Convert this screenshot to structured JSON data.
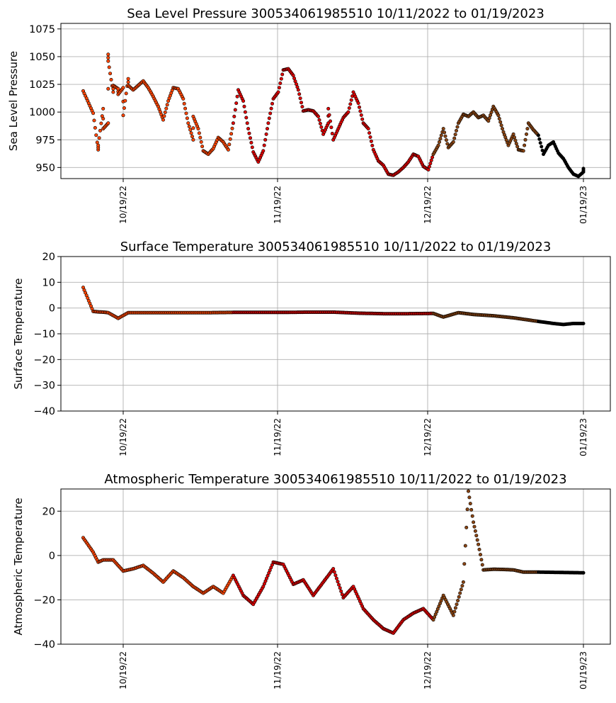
{
  "figure": {
    "x_tick_labels": [
      "10/19/22",
      "11/19/22",
      "12/19/22",
      "01/19/23"
    ]
  },
  "color_scale": [
    "#FF4500",
    "#E00000",
    "#8B4513",
    "#000000"
  ],
  "chart_data": [
    {
      "type": "scatter",
      "title": "Sea Level Pressure 300534061985510  10/11/2022 to 01/19/2023",
      "ylabel": "Sea Level Pressure",
      "xlabel": "",
      "ylim": [
        940,
        1080
      ],
      "yticks": [
        "950",
        "975",
        "1000",
        "1025",
        "1050",
        "1075"
      ],
      "x_range": [
        "10/11/2022",
        "01/19/2023"
      ],
      "grid": true,
      "points": [
        [
          "2022-10-11",
          1019
        ],
        [
          "2022-10-13",
          999
        ],
        [
          "2022-10-14",
          966
        ],
        [
          "2022-10-14",
          970
        ],
        [
          "2022-10-15",
          1003
        ],
        [
          "2022-10-15",
          985
        ],
        [
          "2022-10-16",
          990
        ],
        [
          "2022-10-16",
          1052
        ],
        [
          "2022-10-16",
          1046
        ],
        [
          "2022-10-17",
          1018
        ],
        [
          "2022-10-17",
          1024
        ],
        [
          "2022-10-18",
          1021
        ],
        [
          "2022-10-18",
          1016
        ],
        [
          "2022-10-19",
          1022
        ],
        [
          "2022-10-19",
          997
        ],
        [
          "2022-10-20",
          1030
        ],
        [
          "2022-10-20",
          1024
        ],
        [
          "2022-10-21",
          1020
        ],
        [
          "2022-10-22",
          1024
        ],
        [
          "2022-10-23",
          1028
        ],
        [
          "2022-10-24",
          1022
        ],
        [
          "2022-10-25",
          1014
        ],
        [
          "2022-10-26",
          1005
        ],
        [
          "2022-10-27",
          993
        ],
        [
          "2022-10-28",
          1010
        ],
        [
          "2022-10-29",
          1022
        ],
        [
          "2022-10-30",
          1021
        ],
        [
          "2022-10-31",
          1012
        ],
        [
          "2022-11-01",
          990
        ],
        [
          "2022-11-02",
          975
        ],
        [
          "2022-11-02",
          996
        ],
        [
          "2022-11-03",
          985
        ],
        [
          "2022-11-04",
          965
        ],
        [
          "2022-11-05",
          962
        ],
        [
          "2022-11-06",
          967
        ],
        [
          "2022-11-07",
          977
        ],
        [
          "2022-11-08",
          973
        ],
        [
          "2022-11-09",
          966
        ],
        [
          "2022-11-10",
          990
        ],
        [
          "2022-11-11",
          1020
        ],
        [
          "2022-11-12",
          1010
        ],
        [
          "2022-11-13",
          985
        ],
        [
          "2022-11-14",
          964
        ],
        [
          "2022-11-15",
          955
        ],
        [
          "2022-11-16",
          965
        ],
        [
          "2022-11-17",
          990
        ],
        [
          "2022-11-18",
          1012
        ],
        [
          "2022-11-19",
          1018
        ],
        [
          "2022-11-20",
          1038
        ],
        [
          "2022-11-21",
          1039
        ],
        [
          "2022-11-22",
          1033
        ],
        [
          "2022-11-23",
          1020
        ],
        [
          "2022-11-24",
          1001
        ],
        [
          "2022-11-25",
          1002
        ],
        [
          "2022-11-26",
          1001
        ],
        [
          "2022-11-27",
          996
        ],
        [
          "2022-11-28",
          980
        ],
        [
          "2022-11-29",
          990
        ],
        [
          "2022-11-29",
          1003
        ],
        [
          "2022-11-30",
          975
        ],
        [
          "2022-12-01",
          985
        ],
        [
          "2022-12-02",
          995
        ],
        [
          "2022-12-03",
          1000
        ],
        [
          "2022-12-04",
          1018
        ],
        [
          "2022-12-05",
          1008
        ],
        [
          "2022-12-06",
          990
        ],
        [
          "2022-12-07",
          985
        ],
        [
          "2022-12-08",
          966
        ],
        [
          "2022-12-09",
          956
        ],
        [
          "2022-12-10",
          952
        ],
        [
          "2022-12-11",
          944
        ],
        [
          "2022-12-12",
          943
        ],
        [
          "2022-12-13",
          946
        ],
        [
          "2022-12-14",
          950
        ],
        [
          "2022-12-15",
          955
        ],
        [
          "2022-12-16",
          962
        ],
        [
          "2022-12-17",
          960
        ],
        [
          "2022-12-18",
          951
        ],
        [
          "2022-12-19",
          948
        ],
        [
          "2022-12-20",
          962
        ],
        [
          "2022-12-21",
          970
        ],
        [
          "2022-12-22",
          985
        ],
        [
          "2022-12-23",
          968
        ],
        [
          "2022-12-24",
          973
        ],
        [
          "2022-12-25",
          990
        ],
        [
          "2022-12-26",
          998
        ],
        [
          "2022-12-27",
          996
        ],
        [
          "2022-12-28",
          1000
        ],
        [
          "2022-12-29",
          995
        ],
        [
          "2022-12-30",
          997
        ],
        [
          "2022-12-31",
          992
        ],
        [
          "2023-01-01",
          1005
        ],
        [
          "2023-01-02",
          997
        ],
        [
          "2023-01-03",
          982
        ],
        [
          "2023-01-04",
          970
        ],
        [
          "2023-01-05",
          980
        ],
        [
          "2023-01-06",
          966
        ],
        [
          "2023-01-07",
          965
        ],
        [
          "2023-01-08",
          990
        ],
        [
          "2023-01-09",
          984
        ],
        [
          "2023-01-10",
          979
        ],
        [
          "2023-01-11",
          962
        ],
        [
          "2023-01-12",
          970
        ],
        [
          "2023-01-13",
          973
        ],
        [
          "2023-01-14",
          963
        ],
        [
          "2023-01-15",
          958
        ],
        [
          "2023-01-16",
          950
        ],
        [
          "2023-01-17",
          944
        ],
        [
          "2023-01-18",
          942
        ],
        [
          "2023-01-19",
          946
        ],
        [
          "2023-01-19",
          949
        ]
      ]
    },
    {
      "type": "scatter",
      "title": "Surface Temperature 300534061985510  10/11/2022 to 01/19/2023",
      "ylabel": "Surface Temperature",
      "xlabel": "",
      "ylim": [
        -40,
        20
      ],
      "yticks": [
        "−40",
        "−30",
        "−20",
        "−10",
        "0",
        "10",
        "20"
      ],
      "x_range": [
        "10/11/2022",
        "01/19/2023"
      ],
      "grid": true,
      "points": [
        [
          "2022-10-11",
          8
        ],
        [
          "2022-10-13",
          -1.3
        ],
        [
          "2022-10-14",
          -1.5
        ],
        [
          "2022-10-15",
          -1.6
        ],
        [
          "2022-10-16",
          -1.8
        ],
        [
          "2022-10-18",
          -4
        ],
        [
          "2022-10-20",
          -1.8
        ],
        [
          "2022-10-25",
          -1.8
        ],
        [
          "2022-10-30",
          -1.8
        ],
        [
          "2022-11-05",
          -1.8
        ],
        [
          "2022-11-10",
          -1.7
        ],
        [
          "2022-11-15",
          -1.7
        ],
        [
          "2022-11-20",
          -1.7
        ],
        [
          "2022-11-25",
          -1.6
        ],
        [
          "2022-11-30",
          -1.6
        ],
        [
          "2022-12-05",
          -2.0
        ],
        [
          "2022-12-10",
          -2.2
        ],
        [
          "2022-12-15",
          -2.2
        ],
        [
          "2022-12-20",
          -2.1
        ],
        [
          "2022-12-22",
          -3.5
        ],
        [
          "2022-12-25",
          -1.8
        ],
        [
          "2022-12-28",
          -2.5
        ],
        [
          "2023-01-01",
          -3.0
        ],
        [
          "2023-01-05",
          -3.8
        ],
        [
          "2023-01-10",
          -5.2
        ],
        [
          "2023-01-13",
          -6.0
        ],
        [
          "2023-01-15",
          -6.4
        ],
        [
          "2023-01-17",
          -6.0
        ],
        [
          "2023-01-19",
          -6.0
        ]
      ]
    },
    {
      "type": "scatter",
      "title": "Atmospheric Temperature 300534061985510  10/11/2022 to 01/19/2023",
      "ylabel": "Atmospheric Temperature",
      "xlabel": "",
      "ylim": [
        -40,
        30
      ],
      "yticks": [
        "−40",
        "−20",
        "0",
        "20"
      ],
      "x_range": [
        "10/11/2022",
        "01/19/2023"
      ],
      "grid": true,
      "points": [
        [
          "2022-10-11",
          8
        ],
        [
          "2022-10-13",
          1.5
        ],
        [
          "2022-10-14",
          -3
        ],
        [
          "2022-10-15",
          -2
        ],
        [
          "2022-10-17",
          -2
        ],
        [
          "2022-10-19",
          -7
        ],
        [
          "2022-10-21",
          -6
        ],
        [
          "2022-10-23",
          -4.5
        ],
        [
          "2022-10-25",
          -8
        ],
        [
          "2022-10-27",
          -12
        ],
        [
          "2022-10-29",
          -7
        ],
        [
          "2022-10-31",
          -10
        ],
        [
          "2022-11-02",
          -14
        ],
        [
          "2022-11-04",
          -17
        ],
        [
          "2022-11-06",
          -14
        ],
        [
          "2022-11-08",
          -17
        ],
        [
          "2022-11-10",
          -9
        ],
        [
          "2022-11-12",
          -18
        ],
        [
          "2022-11-14",
          -22
        ],
        [
          "2022-11-16",
          -14
        ],
        [
          "2022-11-18",
          -3
        ],
        [
          "2022-11-20",
          -4
        ],
        [
          "2022-11-22",
          -13
        ],
        [
          "2022-11-24",
          -11
        ],
        [
          "2022-11-26",
          -18
        ],
        [
          "2022-11-28",
          -12
        ],
        [
          "2022-11-30",
          -6
        ],
        [
          "2022-12-02",
          -19
        ],
        [
          "2022-12-04",
          -14
        ],
        [
          "2022-12-06",
          -24
        ],
        [
          "2022-12-08",
          -29
        ],
        [
          "2022-12-10",
          -33
        ],
        [
          "2022-12-12",
          -35
        ],
        [
          "2022-12-14",
          -29
        ],
        [
          "2022-12-16",
          -26
        ],
        [
          "2022-12-18",
          -24
        ],
        [
          "2022-12-20",
          -29
        ],
        [
          "2022-12-22",
          -18
        ],
        [
          "2022-12-24",
          -27
        ],
        [
          "2022-12-26",
          -12
        ],
        [
          "2022-12-27",
          29
        ],
        [
          "2022-12-28",
          15
        ],
        [
          "2022-12-29",
          5
        ],
        [
          "2022-12-30",
          -6.5
        ],
        [
          "2023-01-01",
          -6.2
        ],
        [
          "2023-01-03",
          -6.3
        ],
        [
          "2023-01-05",
          -6.5
        ],
        [
          "2023-01-07",
          -7.5
        ],
        [
          "2023-01-10",
          -7.5
        ],
        [
          "2023-01-13",
          -7.6
        ],
        [
          "2023-01-16",
          -7.7
        ],
        [
          "2023-01-19",
          -7.8
        ]
      ]
    }
  ]
}
